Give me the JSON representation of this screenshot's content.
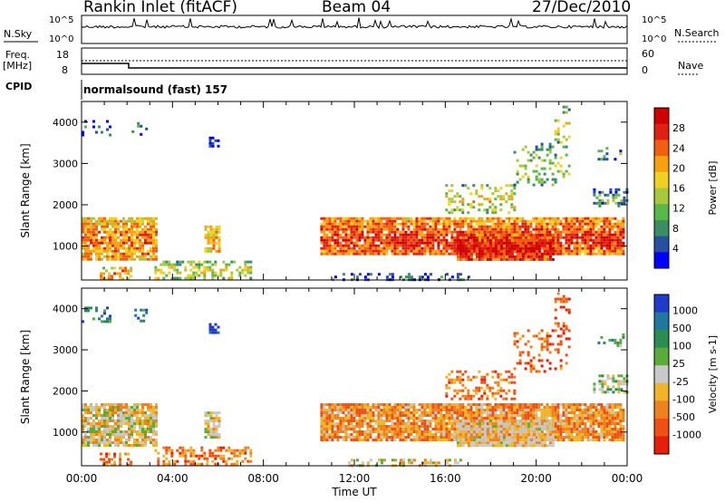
{
  "header": {
    "station": "Rankin Inlet (fitACF)",
    "beam": "Beam 04",
    "date": "27/Dec/2010"
  },
  "strip_panels": {
    "noise": {
      "left_label": "N.Sky",
      "right_label": "N.Search",
      "left_ticks": [
        "10^5",
        "10^0"
      ],
      "right_ticks": [
        "10^5",
        "10^0"
      ]
    },
    "freq": {
      "left_label_line1": "Freq.",
      "left_label_line2": "[MHz]",
      "right_label": "Nave",
      "left_ticks": [
        "18",
        "8"
      ],
      "right_ticks": [
        "60",
        "0"
      ]
    },
    "cpid": {
      "label": "CPID",
      "value": "normalsound (fast) 157"
    }
  },
  "chart_data": [
    {
      "type": "heatmap",
      "title": "",
      "quantity": "Power",
      "ylabel": "Slant Range [km]",
      "ylim": [
        180,
        4500
      ],
      "yticks": [
        "1000",
        "2000",
        "3000",
        "4000"
      ],
      "colorbar_label": "Power [dB]",
      "colorbar_ticks": [
        "4",
        "8",
        "12",
        "16",
        "20",
        "24",
        "28"
      ],
      "colorbar_range": [
        0,
        32
      ],
      "colors": [
        "#0000ff",
        "#2850a0",
        "#3c8c64",
        "#58b84a",
        "#a8c83c",
        "#f0d020",
        "#f8a010",
        "#f06010",
        "#e02010",
        "#d00000"
      ]
    },
    {
      "type": "heatmap",
      "title": "",
      "quantity": "Velocity",
      "ylabel": "Slant Range [km]",
      "xlabel": "Time UT",
      "ylim": [
        180,
        4500
      ],
      "xticks": [
        "00:00",
        "04:00",
        "08:00",
        "12:00",
        "16:00",
        "20:00",
        "00:00"
      ],
      "yticks": [
        "1000",
        "2000",
        "3000",
        "4000"
      ],
      "colorbar_label": "Velocity [m s-1]",
      "colorbar_ticks": [
        "1000",
        "500",
        "100",
        "25",
        "-25",
        "-100",
        "-500",
        "-1000"
      ],
      "colors": [
        "#1e3cc8",
        "#1e78a0",
        "#2d8c50",
        "#5aaa3c",
        "#c8c8c8",
        "#f0b428",
        "#f0821e",
        "#f05014",
        "#e61e0a"
      ]
    }
  ]
}
